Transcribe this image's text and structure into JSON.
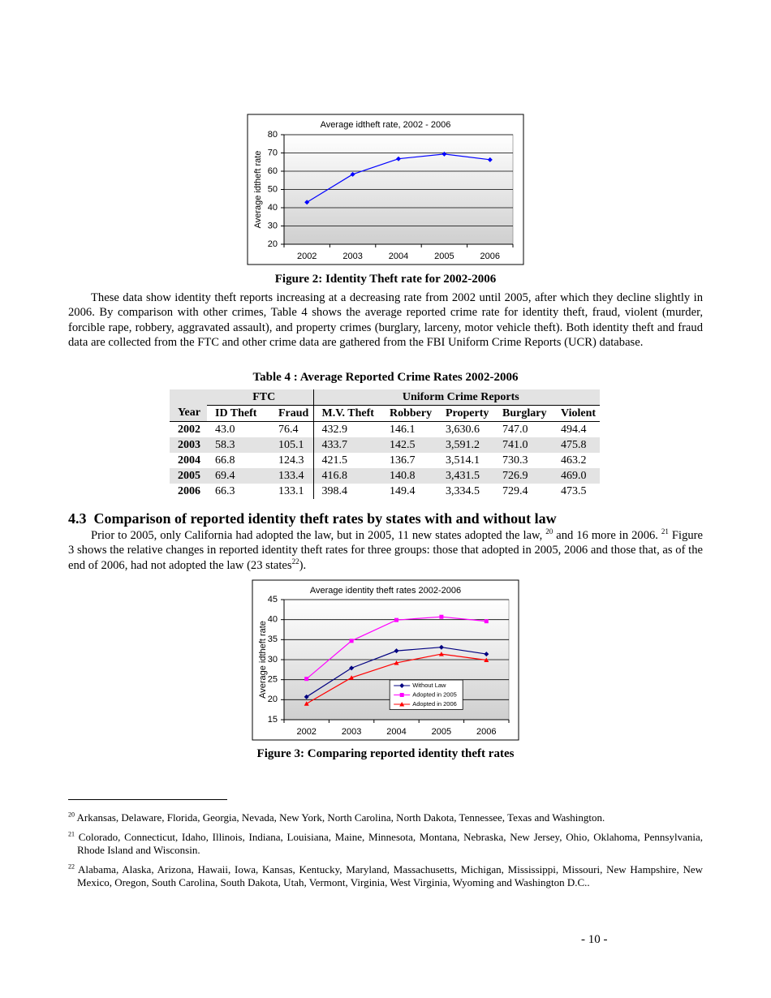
{
  "chart_data": [
    {
      "type": "line",
      "title": "Average idtheft rate, 2002 - 2006",
      "ylabel": "Average idtheft rate",
      "categories": [
        "2002",
        "2003",
        "2004",
        "2005",
        "2006"
      ],
      "values": [
        43.0,
        58.3,
        66.8,
        69.4,
        66.3
      ],
      "color": "#0000ff",
      "marker": "diamond",
      "ylim": [
        20,
        80
      ],
      "yticks": [
        20,
        30,
        40,
        50,
        60,
        70,
        80
      ],
      "grid": true
    },
    {
      "type": "line",
      "title": "Average identity theft rates 2002-2006",
      "ylabel": "Average idtheft rate",
      "categories": [
        "2002",
        "2003",
        "2004",
        "2005",
        "2006"
      ],
      "series": [
        {
          "name": "Without Law",
          "color": "#000080",
          "marker": "diamond",
          "values": [
            20.7,
            27.9,
            32.2,
            33.1,
            31.4
          ]
        },
        {
          "name": "Adopted in 2005",
          "color": "#ff00ff",
          "marker": "square",
          "values": [
            25.2,
            34.7,
            39.9,
            40.7,
            39.6
          ]
        },
        {
          "name": "Adopted in 2006",
          "color": "#ff0000",
          "marker": "triangle",
          "values": [
            19.0,
            25.5,
            29.2,
            31.4,
            29.9
          ]
        }
      ],
      "ylim": [
        15,
        45
      ],
      "yticks": [
        15,
        20,
        25,
        30,
        35,
        40,
        45
      ],
      "grid": true,
      "legend": "lower center"
    }
  ],
  "figure_captions": [
    "Figure 2: Identity Theft rate for 2002-2006",
    "Figure 3: Comparing reported identity theft rates"
  ],
  "paragraph1": "These data show identity theft reports increasing at a decreasing rate from 2002 until 2005, after which they decline slightly in 2006. By comparison with other crimes, Table 4 shows the average reported crime rate for identity theft, fraud, violent (murder, forcible rape, robbery, aggravated assault), and property crimes (burglary, larceny, motor vehicle theft). Both identity theft and fraud data are collected from the FTC and other crime data are gathered from the FBI Uniform Crime Reports (UCR) database.",
  "table": {
    "title": "Table 4 : Average Reported Crime Rates 2002-2006",
    "groups": [
      "FTC",
      "Uniform Crime Reports"
    ],
    "columns": [
      "Year",
      "ID Theft",
      "Fraud",
      "M.V. Theft",
      "Robbery",
      "Property",
      "Burglary",
      "Violent"
    ],
    "rows": [
      [
        "2002",
        "43.0",
        "76.4",
        "432.9",
        "146.1",
        "3,630.6",
        "747.0",
        "494.4"
      ],
      [
        "2003",
        "58.3",
        "105.1",
        "433.7",
        "142.5",
        "3,591.2",
        "741.0",
        "475.8"
      ],
      [
        "2004",
        "66.8",
        "124.3",
        "421.5",
        "136.7",
        "3,514.1",
        "730.3",
        "463.2"
      ],
      [
        "2005",
        "69.4",
        "133.4",
        "416.8",
        "140.8",
        "3,431.5",
        "726.9",
        "469.0"
      ],
      [
        "2006",
        "66.3",
        "133.1",
        "398.4",
        "149.4",
        "3,334.5",
        "729.4",
        "473.5"
      ]
    ]
  },
  "section": {
    "number": "4.3",
    "title": "Comparison of reported identity theft rates by states with and without law"
  },
  "paragraph2": [
    "Prior to 2005, only California had adopted the law, but in 2005, 11 new states adopted the law, ",
    "20",
    " and 16 more in 2006. ",
    "21",
    " Figure 3 shows the relative changes in reported identity theft rates for three groups: those that adopted in 2005, 2006 and those that, as of the end of 2006, had not adopted the law (23 states",
    "22",
    ")."
  ],
  "footnotes": [
    {
      "mark": "20",
      "text": "Arkansas, Delaware, Florida, Georgia, Nevada, New York, North Carolina, North Dakota, Tennessee, Texas and Washington."
    },
    {
      "mark": "21",
      "text": "Colorado, Connecticut, Idaho, Illinois, Indiana, Louisiana, Maine, Minnesota, Montana, Nebraska, New Jersey, Ohio, Oklahoma, Pennsylvania, Rhode Island and Wisconsin."
    },
    {
      "mark": "22",
      "text": "Alabama, Alaska, Arizona, Hawaii, Iowa, Kansas, Kentucky, Maryland, Massachusetts, Michigan, Mississippi, Missouri, New Hampshire, New Mexico, Oregon, South Carolina, South Dakota, Utah, Vermont, Virginia, West Virginia, Wyoming and Washington D.C.."
    }
  ],
  "page_number": "- 10 -"
}
